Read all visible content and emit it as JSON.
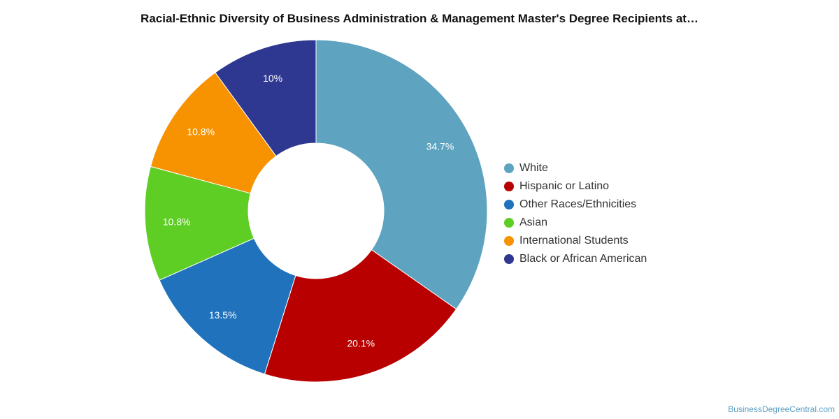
{
  "chart_data": {
    "type": "pie",
    "title": "Racial-Ethnic Diversity of Business Administration & Management Master's Degree Recipients at…",
    "donut": true,
    "categories": [
      "White",
      "Hispanic or Latino",
      "Other Races/Ethnicities",
      "Asian",
      "International Students",
      "Black or African American"
    ],
    "values": [
      34.7,
      20.1,
      13.5,
      10.8,
      10.8,
      10.0
    ],
    "value_labels": [
      "34.7%",
      "20.1%",
      "13.5%",
      "10.8%",
      "10.8%",
      "10%"
    ],
    "colors": [
      "#5ea3c0",
      "#b80000",
      "#1f72bb",
      "#5fce24",
      "#f79300",
      "#2e3890"
    ],
    "legend_position": "right"
  },
  "source_text": "BusinessDegreeCentral.com"
}
